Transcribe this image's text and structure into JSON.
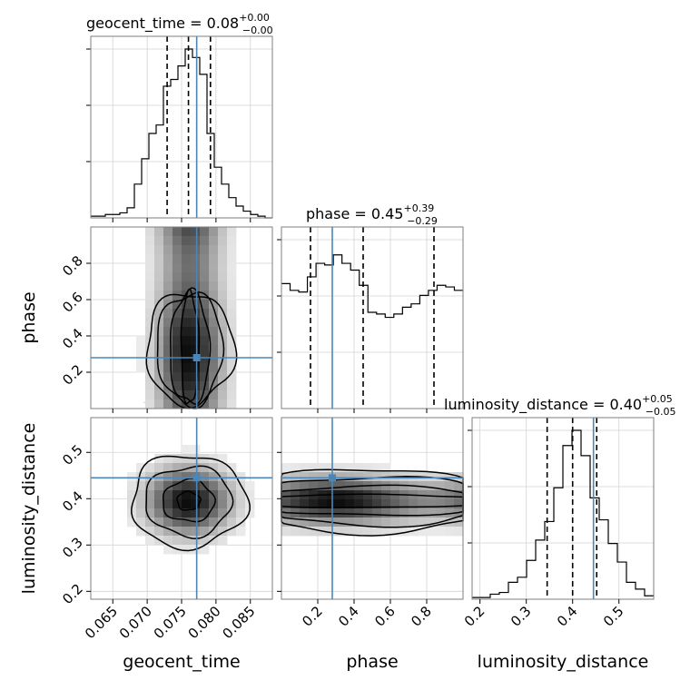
{
  "chart_data": {
    "type": "corner",
    "parameters": [
      "geocent_time",
      "phase",
      "luminosity_distance"
    ],
    "truths": {
      "geocent_time": 0.0772,
      "phase": 0.28,
      "luminosity_distance": 0.445
    },
    "titles": [
      {
        "name": "geocent_time",
        "value": "0.08",
        "plus": "+0.00",
        "minus": "−0.00"
      },
      {
        "name": "phase",
        "value": "0.45",
        "plus": "+0.39",
        "minus": "−0.29"
      },
      {
        "name": "luminosity_distance",
        "value": "0.40",
        "plus": "+0.05",
        "minus": "−0.05"
      }
    ],
    "ranges": {
      "geocent_time": [
        0.0618,
        0.0882
      ],
      "phase": [
        0.0,
        1.0
      ],
      "luminosity_distance": [
        0.183,
        0.575
      ]
    },
    "ticks": {
      "geocent_time": {
        "values": [
          0.065,
          0.07,
          0.075,
          0.08,
          0.085
        ],
        "labels": [
          "0.065",
          "0.070",
          "0.075",
          "0.080",
          "0.085"
        ]
      },
      "phase": {
        "values": [
          0.2,
          0.4,
          0.6,
          0.8
        ],
        "labels": [
          "0.2",
          "0.4",
          "0.6",
          "0.8"
        ]
      },
      "luminosity_distance": {
        "values": [
          0.2,
          0.3,
          0.4,
          0.5
        ],
        "labels": [
          "0.2",
          "0.3",
          "0.4",
          "0.5"
        ]
      }
    },
    "quantiles": {
      "geocent_time": [
        0.0729,
        0.076,
        0.0792
      ],
      "phase": [
        0.16,
        0.45,
        0.84
      ],
      "luminosity_distance": [
        0.345,
        0.4,
        0.452
      ]
    },
    "histograms": {
      "geocent_time": [
        0.01,
        0.01,
        0.02,
        0.02,
        0.03,
        0.06,
        0.2,
        0.35,
        0.5,
        0.55,
        0.78,
        0.82,
        0.9,
        1.0,
        0.95,
        0.85,
        0.5,
        0.3,
        0.2,
        0.12,
        0.07,
        0.04,
        0.02,
        0.01,
        0.0
      ],
      "phase": [
        0.74,
        0.7,
        0.69,
        0.78,
        0.86,
        0.85,
        0.91,
        0.86,
        0.82,
        0.73,
        0.57,
        0.56,
        0.54,
        0.56,
        0.6,
        0.62,
        0.67,
        0.7,
        0.73,
        0.72,
        0.7
      ],
      "luminosity_distance": [
        0.01,
        0.01,
        0.03,
        0.04,
        0.1,
        0.13,
        0.23,
        0.35,
        0.46,
        0.66,
        0.91,
        1.0,
        0.85,
        0.6,
        0.47,
        0.33,
        0.22,
        0.1,
        0.06,
        0.02
      ]
    },
    "contours": {
      "phase_vs_geocent_time": {
        "center": [
          0.0762,
          0.33
        ],
        "spread": [
          0.0032,
          0.22
        ]
      },
      "luminosity_distance_vs_geocent_time": {
        "center": [
          0.076,
          0.395
        ],
        "spread": [
          0.0042,
          0.05
        ]
      },
      "luminosity_distance_vs_phase": {
        "center": [
          0.5,
          0.395
        ],
        "spread": [
          0.5,
          0.035
        ]
      }
    },
    "grid": true,
    "truth_color": "#4a87b8",
    "line_color": "#000000"
  }
}
